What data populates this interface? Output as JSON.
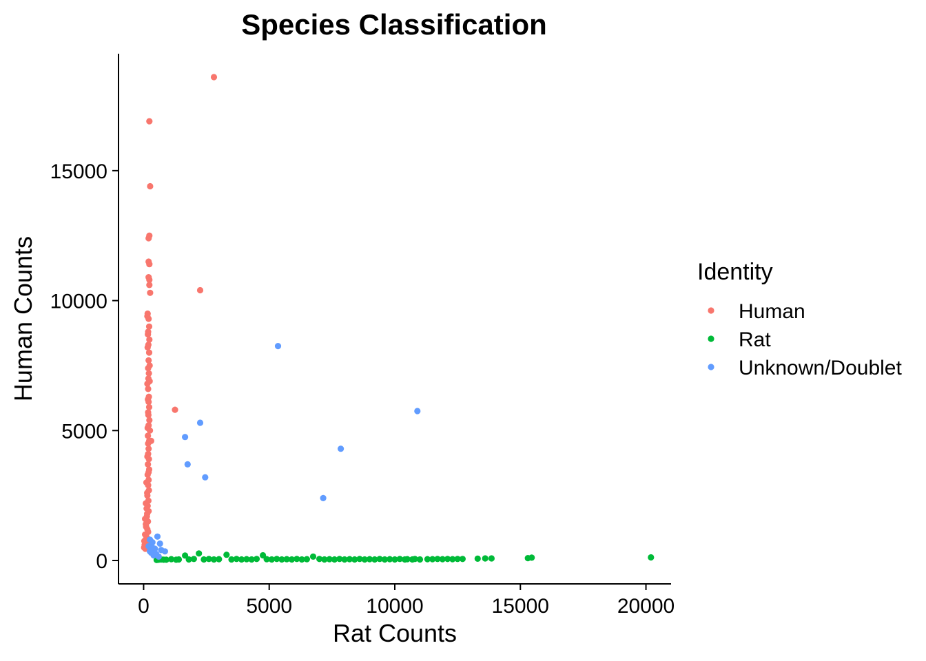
{
  "chart_data": {
    "type": "scatter",
    "title": "Species Classification",
    "xlabel": "Rat Counts",
    "ylabel": "Human Counts",
    "xlim": [
      -1000,
      21000
    ],
    "ylim": [
      -900,
      19500
    ],
    "xticks": [
      0,
      5000,
      10000,
      15000,
      20000
    ],
    "yticks": [
      0,
      5000,
      10000,
      15000
    ],
    "grid": false,
    "legend": {
      "title": "Identity",
      "position": "right"
    },
    "series": [
      {
        "name": "Human",
        "color": "#F8766D",
        "points": [
          [
            2800,
            18600
          ],
          [
            230,
            16900
          ],
          [
            260,
            14400
          ],
          [
            230,
            12500
          ],
          [
            200,
            12400
          ],
          [
            200,
            11500
          ],
          [
            230,
            11400
          ],
          [
            2250,
            10400
          ],
          [
            200,
            10900
          ],
          [
            230,
            10800
          ],
          [
            230,
            10600
          ],
          [
            260,
            10300
          ],
          [
            160,
            9500
          ],
          [
            200,
            9300
          ],
          [
            220,
            9000
          ],
          [
            180,
            8800
          ],
          [
            230,
            8500
          ],
          [
            190,
            8300
          ],
          [
            220,
            8000
          ],
          [
            200,
            7700
          ],
          [
            240,
            7500
          ],
          [
            210,
            7200
          ],
          [
            190,
            7000
          ],
          [
            240,
            6900
          ],
          [
            180,
            6600
          ],
          [
            210,
            6300
          ],
          [
            200,
            6100
          ],
          [
            220,
            5900
          ],
          [
            1250,
            5800
          ],
          [
            180,
            5700
          ],
          [
            230,
            5400
          ],
          [
            200,
            5200
          ],
          [
            250,
            5000
          ],
          [
            170,
            4800
          ],
          [
            220,
            4600
          ],
          [
            300,
            4600
          ],
          [
            200,
            4300
          ],
          [
            180,
            4100
          ],
          [
            210,
            3900
          ],
          [
            170,
            3700
          ],
          [
            220,
            3500
          ],
          [
            160,
            3300
          ],
          [
            200,
            3100
          ],
          [
            180,
            2900
          ],
          [
            210,
            2700
          ],
          [
            150,
            2500
          ],
          [
            190,
            2300
          ],
          [
            160,
            2100
          ],
          [
            200,
            1900
          ],
          [
            130,
            1700
          ],
          [
            170,
            1500
          ],
          [
            100,
            1300
          ],
          [
            150,
            1200
          ],
          [
            60,
            1000
          ],
          [
            120,
            900
          ],
          [
            80,
            800
          ],
          [
            150,
            700
          ],
          [
            40,
            600
          ],
          [
            100,
            550
          ],
          [
            20,
            500
          ],
          [
            70,
            450
          ],
          [
            130,
            650
          ],
          [
            30,
            750
          ],
          [
            180,
            1100
          ],
          [
            90,
            1400
          ],
          [
            60,
            1600
          ],
          [
            140,
            1800
          ],
          [
            120,
            2000
          ],
          [
            90,
            2200
          ],
          [
            140,
            2600
          ],
          [
            110,
            3000
          ],
          [
            200,
            3400
          ],
          [
            150,
            4000
          ],
          [
            180,
            4500
          ],
          [
            160,
            5100
          ],
          [
            190,
            5600
          ],
          [
            170,
            6200
          ],
          [
            150,
            6800
          ],
          [
            180,
            7400
          ],
          [
            160,
            8200
          ],
          [
            170,
            8700
          ],
          [
            150,
            9400
          ]
        ]
      },
      {
        "name": "Rat",
        "color": "#00BA38",
        "points": [
          [
            20200,
            120
          ],
          [
            15450,
            110
          ],
          [
            15300,
            90
          ],
          [
            13850,
            80
          ],
          [
            13600,
            80
          ],
          [
            13300,
            70
          ],
          [
            12700,
            60
          ],
          [
            12500,
            60
          ],
          [
            12300,
            50
          ],
          [
            12100,
            60
          ],
          [
            11900,
            50
          ],
          [
            11700,
            60
          ],
          [
            11500,
            50
          ],
          [
            11300,
            50
          ],
          [
            10800,
            60
          ],
          [
            10500,
            50
          ],
          [
            10200,
            60
          ],
          [
            9800,
            50
          ],
          [
            9400,
            60
          ],
          [
            9000,
            50
          ],
          [
            8600,
            60
          ],
          [
            8200,
            50
          ],
          [
            7800,
            60
          ],
          [
            7400,
            50
          ],
          [
            7000,
            60
          ],
          [
            6750,
            150
          ],
          [
            6500,
            50
          ],
          [
            6100,
            60
          ],
          [
            5700,
            50
          ],
          [
            5300,
            60
          ],
          [
            4900,
            50
          ],
          [
            4750,
            200
          ],
          [
            4500,
            60
          ],
          [
            4100,
            50
          ],
          [
            3700,
            60
          ],
          [
            3300,
            220
          ],
          [
            3000,
            50
          ],
          [
            2600,
            60
          ],
          [
            2200,
            270
          ],
          [
            2000,
            60
          ],
          [
            1650,
            190
          ],
          [
            1400,
            40
          ],
          [
            1100,
            50
          ],
          [
            800,
            30
          ],
          [
            600,
            30
          ],
          [
            520,
            20
          ],
          [
            700,
            40
          ],
          [
            900,
            30
          ],
          [
            1300,
            30
          ],
          [
            1800,
            40
          ],
          [
            2400,
            40
          ],
          [
            2800,
            40
          ],
          [
            3500,
            40
          ],
          [
            3900,
            40
          ],
          [
            4300,
            40
          ],
          [
            5100,
            40
          ],
          [
            5500,
            40
          ],
          [
            5900,
            40
          ],
          [
            6300,
            40
          ],
          [
            7200,
            40
          ],
          [
            7600,
            40
          ],
          [
            8000,
            40
          ],
          [
            8400,
            40
          ],
          [
            8800,
            40
          ],
          [
            9200,
            40
          ],
          [
            9600,
            40
          ],
          [
            10000,
            40
          ],
          [
            10400,
            40
          ],
          [
            10700,
            40
          ],
          [
            11000,
            40
          ]
        ]
      },
      {
        "name": "Unknown/Doublet",
        "color": "#619CFF",
        "points": [
          [
            5350,
            8250
          ],
          [
            10900,
            5750
          ],
          [
            2250,
            5300
          ],
          [
            1650,
            4750
          ],
          [
            7850,
            4300
          ],
          [
            1750,
            3700
          ],
          [
            2450,
            3200
          ],
          [
            7150,
            2400
          ],
          [
            550,
            920
          ],
          [
            250,
            800
          ],
          [
            350,
            700
          ],
          [
            650,
            650
          ],
          [
            700,
            400
          ],
          [
            450,
            450
          ],
          [
            850,
            350
          ],
          [
            300,
            300
          ],
          [
            400,
            200
          ],
          [
            250,
            350
          ],
          [
            350,
            500
          ],
          [
            500,
            250
          ],
          [
            600,
            150
          ],
          [
            200,
            550
          ]
        ]
      }
    ]
  }
}
